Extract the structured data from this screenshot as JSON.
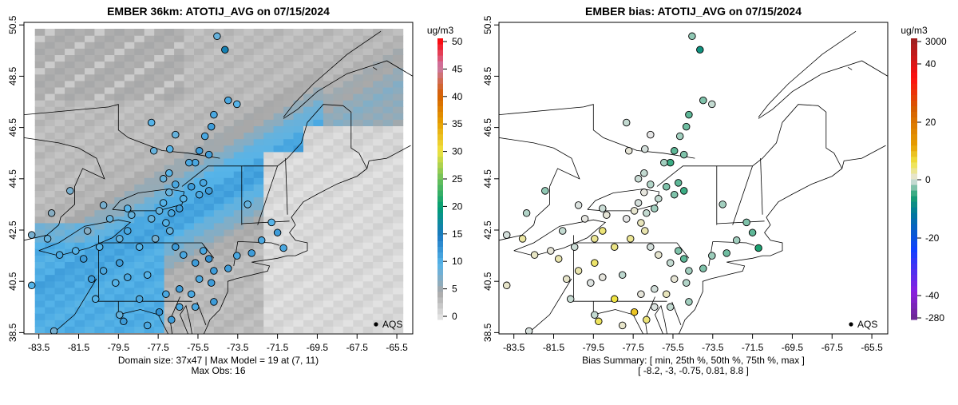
{
  "chart_data": [
    {
      "type": "heatmap",
      "title": "EMBER 36km: ATOTIJ_AVG on 07/15/2024",
      "xlabel": "",
      "ylabel": "",
      "x_ticks": [
        "-83.5",
        "-81.5",
        "-79.5",
        "-77.5",
        "-75.5",
        "-73.5",
        "-71.5",
        "-69.5",
        "-67.5",
        "-65.5"
      ],
      "y_ticks": [
        "38.5",
        "40.5",
        "42.5",
        "44.5",
        "46.5",
        "48.5",
        "50.5"
      ],
      "xlim": [
        -84.25,
        -64.7
      ],
      "ylim": [
        38.45,
        50.6
      ],
      "colorbar": {
        "unit": "ug/m3",
        "ticks": [
          "0",
          "5",
          "10",
          "15",
          "20",
          "25",
          "30",
          "35",
          "40",
          "45",
          "50"
        ],
        "range": [
          0,
          50
        ]
      },
      "legend": {
        "label": "AQS",
        "placement": "bottom-right"
      },
      "footer": [
        "Domain size: 37x47 | Max Model = 19 at (7, 11)",
        "Max Obs: 16"
      ],
      "grid_dims": [
        37,
        47
      ],
      "max_model": 19,
      "max_obs": 16
    },
    {
      "type": "scatter",
      "title": "EMBER bias: ATOTIJ_AVG on 07/15/2024",
      "xlabel": "",
      "ylabel": "",
      "x_ticks": [
        "-83.5",
        "-81.5",
        "-79.5",
        "-77.5",
        "-75.5",
        "-73.5",
        "-71.5",
        "-69.5",
        "-67.5",
        "-65.5"
      ],
      "y_ticks": [
        "38.5",
        "40.5",
        "42.5",
        "44.5",
        "46.5",
        "48.5",
        "50.5"
      ],
      "xlim": [
        -84.25,
        -64.7
      ],
      "ylim": [
        38.45,
        50.6
      ],
      "colorbar": {
        "unit": "ug/m3",
        "ticks": [
          "3000",
          "40",
          "20",
          "0",
          "-20",
          "-40",
          "-280"
        ]
      },
      "legend": {
        "label": "AQS",
        "placement": "bottom-right"
      },
      "footer": [
        "Bias Summary: [ min, 25th %, 50th %, 75th %, max ]",
        "[ -8.2,   -3,   -0.75,   0.81,   8.8 ]"
      ],
      "bias_summary": {
        "min": -8.2,
        "p25": -3,
        "p50": -0.75,
        "p75": 0.81,
        "max": 8.8
      }
    }
  ],
  "sites_fields": [
    "lon",
    "lat",
    "obs",
    "bias"
  ],
  "sites": [
    [
      -74.54,
      50.06,
      9,
      -2.5
    ],
    [
      -74.14,
      49.53,
      16,
      -8.2
    ],
    [
      -73.98,
      47.56,
      11,
      -3
    ],
    [
      -73.54,
      47.41,
      10,
      -1
    ],
    [
      -74.7,
      47.0,
      11,
      -4
    ],
    [
      -74.83,
      46.53,
      12,
      -3.5
    ],
    [
      -75.15,
      46.16,
      11,
      -2
    ],
    [
      -75.43,
      45.59,
      12,
      -4
    ],
    [
      -75.63,
      45.13,
      11,
      -5
    ],
    [
      -74.95,
      45.44,
      12,
      -3
    ],
    [
      -77.84,
      46.69,
      10,
      -1
    ],
    [
      -77.72,
      45.59,
      9,
      0.5
    ],
    [
      -76.91,
      45.66,
      10,
      -0.5
    ],
    [
      -76.63,
      46.22,
      9,
      0
    ],
    [
      -75.95,
      45.13,
      11,
      -2
    ],
    [
      -76.95,
      44.72,
      10,
      -1
    ],
    [
      -77.24,
      44.5,
      9,
      -0.8
    ],
    [
      -76.63,
      44.28,
      11,
      -1.5
    ],
    [
      -75.83,
      44.19,
      12,
      -3
    ],
    [
      -75.23,
      44.34,
      11,
      -4
    ],
    [
      -74.95,
      44.03,
      12,
      -5
    ],
    [
      -75.43,
      43.88,
      11,
      -3
    ],
    [
      -76.23,
      43.72,
      10,
      -1
    ],
    [
      -76.95,
      43.97,
      9,
      0.3
    ],
    [
      -77.24,
      43.56,
      10,
      -0.5
    ],
    [
      -77.44,
      43.25,
      9,
      0.8
    ],
    [
      -76.83,
      43.16,
      11,
      -1
    ],
    [
      -76.43,
      43.34,
      12,
      -2
    ],
    [
      -77.11,
      42.78,
      10,
      1.5
    ],
    [
      -76.91,
      42.47,
      9,
      2
    ],
    [
      -77.64,
      42.16,
      8,
      3
    ],
    [
      -77.84,
      42.94,
      9,
      0
    ],
    [
      -78.84,
      43.09,
      9,
      0.5
    ],
    [
      -79.04,
      43.34,
      10,
      -0.8
    ],
    [
      -80.25,
      43.47,
      8,
      -0.3
    ],
    [
      -79.93,
      42.94,
      9,
      0.2
    ],
    [
      -81.05,
      42.47,
      7,
      -1
    ],
    [
      -81.93,
      44.03,
      8,
      -2.5
    ],
    [
      -82.86,
      43.16,
      7,
      -1.5
    ],
    [
      -83.06,
      42.16,
      9,
      2.5
    ],
    [
      -83.86,
      42.31,
      8,
      -0.5
    ],
    [
      -82.46,
      41.53,
      11,
      1.2
    ],
    [
      -81.65,
      41.69,
      10,
      0.5
    ],
    [
      -81.25,
      41.38,
      12,
      2
    ],
    [
      -80.45,
      41.84,
      10,
      -0.7
    ],
    [
      -79.44,
      42.16,
      9,
      3
    ],
    [
      -79.04,
      42.47,
      11,
      4
    ],
    [
      -78.44,
      41.84,
      10,
      3.5
    ],
    [
      -79.44,
      41.22,
      12,
      4.5
    ],
    [
      -80.25,
      40.91,
      11,
      2
    ],
    [
      -80.85,
      40.59,
      12,
      1
    ],
    [
      -79.64,
      40.44,
      10,
      -0.2
    ],
    [
      -79.04,
      40.66,
      11,
      0.3
    ],
    [
      -78.04,
      40.75,
      10,
      -1.2
    ],
    [
      -78.44,
      39.81,
      11,
      6
    ],
    [
      -79.44,
      39.19,
      9,
      -1
    ],
    [
      -79.24,
      38.94,
      12,
      5
    ],
    [
      -78.04,
      38.78,
      11,
      1
    ],
    [
      -80.65,
      39.81,
      10,
      -0.9
    ],
    [
      -82.74,
      38.56,
      8,
      -0.4
    ],
    [
      -83.86,
      40.34,
      10,
      1
    ],
    [
      -76.63,
      41.84,
      12,
      -0.5
    ],
    [
      -76.23,
      41.53,
      11,
      0.8
    ],
    [
      -75.63,
      41.22,
      12,
      -1
    ],
    [
      -75.23,
      41.69,
      11,
      -3
    ],
    [
      -74.95,
      41.38,
      13,
      -4
    ],
    [
      -74.7,
      40.91,
      12,
      -2
    ],
    [
      -74.83,
      40.44,
      12,
      -1.5
    ],
    [
      -75.43,
      40.59,
      11,
      0.6
    ],
    [
      -75.83,
      40.0,
      11,
      1.5
    ],
    [
      -76.43,
      40.2,
      12,
      -0.6
    ],
    [
      -77.11,
      40.0,
      11,
      0.4
    ],
    [
      -77.44,
      39.3,
      13,
      8.8
    ],
    [
      -76.83,
      39.0,
      12,
      4
    ],
    [
      -76.43,
      39.5,
      11,
      -0.3
    ],
    [
      -75.63,
      39.5,
      11,
      -1
    ],
    [
      -74.7,
      39.7,
      12,
      -2
    ],
    [
      -73.98,
      41.0,
      12,
      -3
    ],
    [
      -73.54,
      41.5,
      11,
      -2.2
    ],
    [
      -72.8,
      41.6,
      12,
      -3.5
    ],
    [
      -72.3,
      42.1,
      11,
      -2
    ],
    [
      -71.5,
      42.4,
      12,
      -4
    ],
    [
      -71.2,
      41.8,
      11,
      -6
    ],
    [
      -71.8,
      42.8,
      10,
      -3
    ],
    [
      -73.0,
      43.5,
      9,
      -2
    ]
  ]
}
